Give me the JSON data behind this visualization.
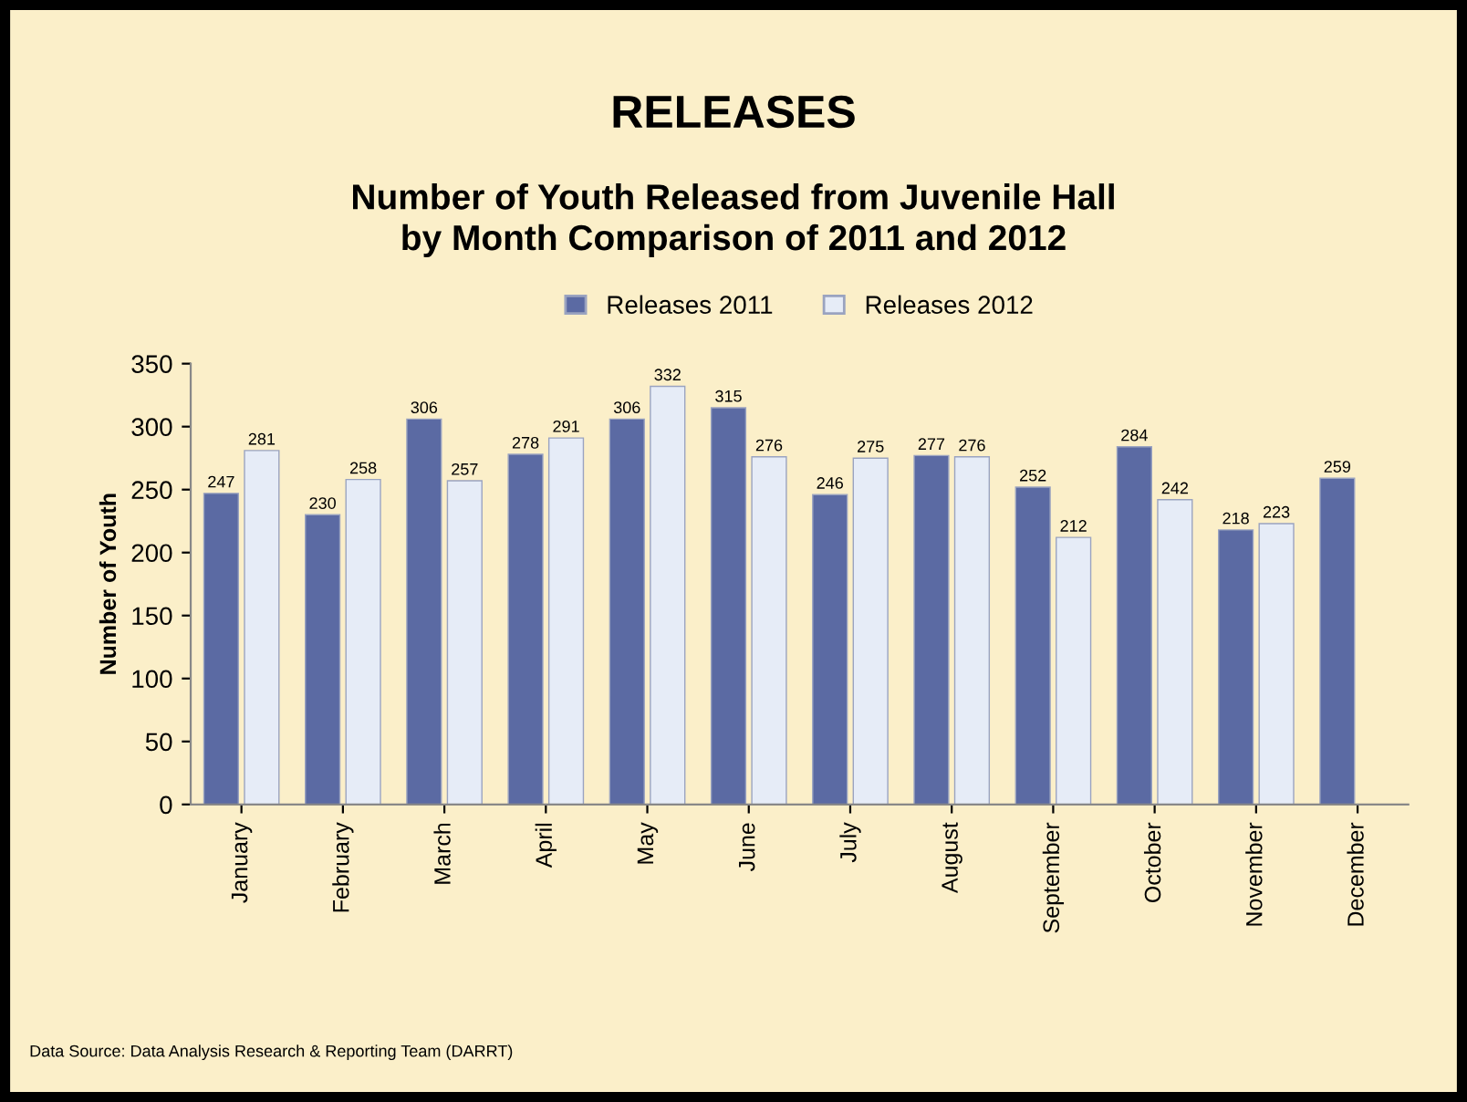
{
  "chart_data": {
    "type": "bar",
    "title": "RELEASES",
    "subtitle": "Number of Youth Released from Juvenile Hall\nby Month Comparison of 2011 and 2012",
    "ylabel": "Number of Youth",
    "categories": [
      "January",
      "February",
      "March",
      "April",
      "May",
      "June",
      "July",
      "August",
      "September",
      "October",
      "November",
      "December"
    ],
    "series": [
      {
        "name": "Releases 2011",
        "color": "#5b6aa3",
        "values": [
          247,
          230,
          306,
          278,
          306,
          315,
          246,
          277,
          252,
          284,
          218,
          259
        ]
      },
      {
        "name": "Releases 2012",
        "color": "#e6ecf7",
        "values": [
          281,
          258,
          257,
          291,
          332,
          276,
          275,
          276,
          212,
          242,
          223,
          null
        ]
      }
    ],
    "ylim": [
      0,
      350
    ],
    "yticks": [
      0,
      50,
      100,
      150,
      200,
      250,
      300,
      350
    ],
    "grid": false,
    "legend": "top",
    "data_labels": true,
    "annotations": [
      "Data Source: Data Analysis Research & Reporting Team (DARRT)"
    ]
  }
}
